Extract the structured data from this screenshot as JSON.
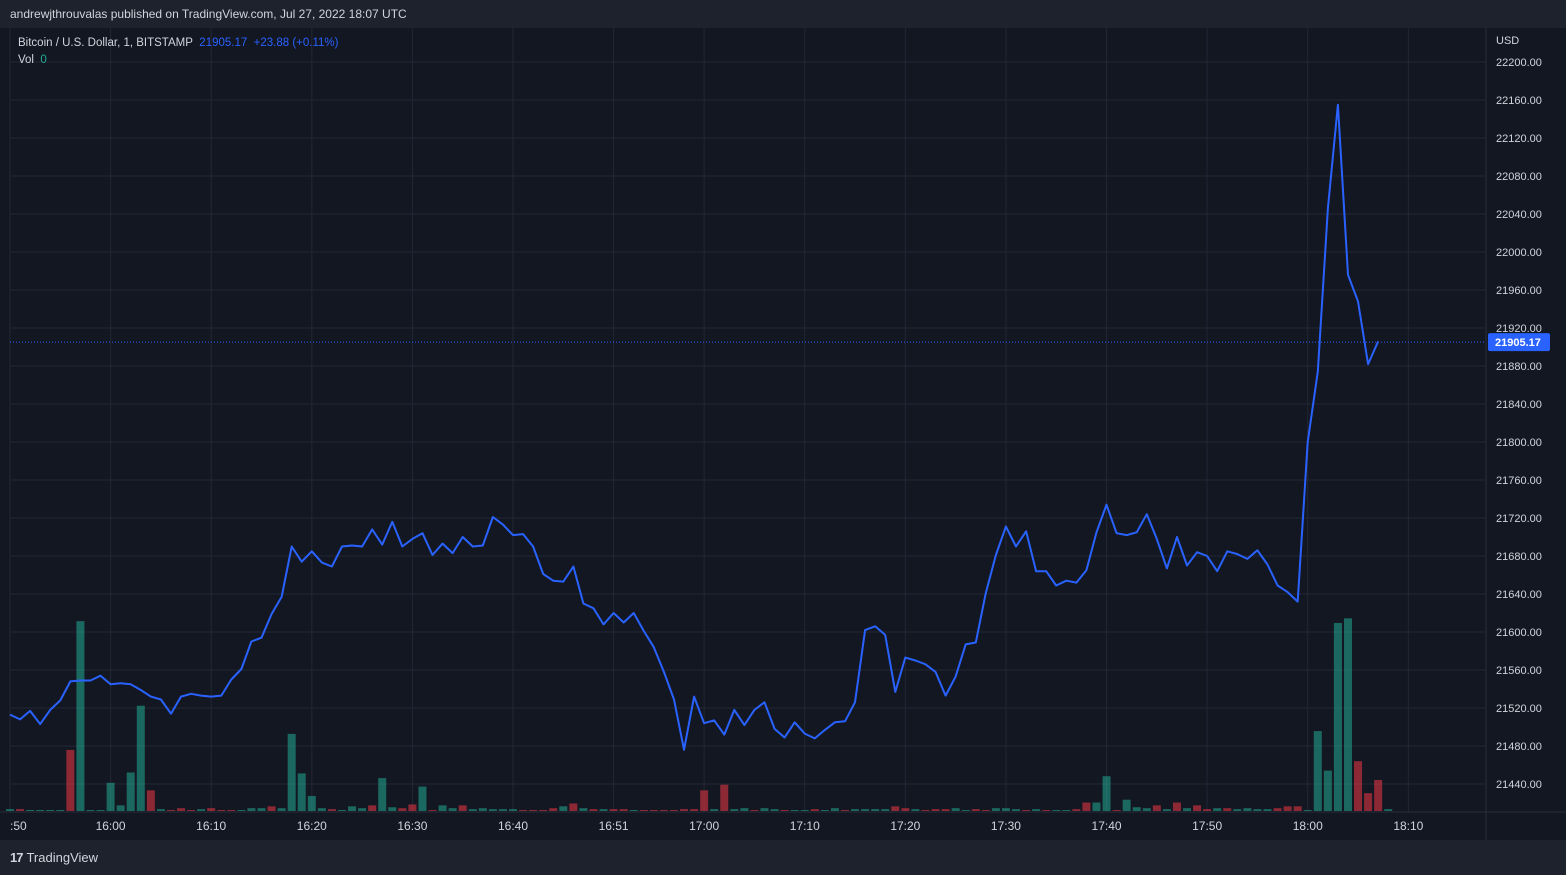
{
  "header": {
    "publisher_text": "andrewjthrouvalas published on TradingView.com, Jul 27, 2022 18:07 UTC"
  },
  "legend": {
    "symbol": "Bitcoin / U.S. Dollar, 1, BITSTAMP",
    "last": "21905.17",
    "change": "+23.88 (+0.11%)",
    "vol_label": "Vol",
    "vol_value": "0"
  },
  "footer": {
    "brand": "TradingView",
    "logo_glyph": "17"
  },
  "colors": {
    "background": "#131722",
    "line": "#2962ff",
    "up": "#22ab94",
    "down": "#f23645",
    "grid": "#232735",
    "axis_text": "#d1d4dc"
  },
  "chart_data": {
    "type": "line",
    "title": "Bitcoin / U.S. Dollar, 1, BITSTAMP",
    "currency_label": "USD",
    "last_price_label": "21905.17",
    "last_price": 21905.17,
    "ylim": [
      21400,
      22220
    ],
    "y_ticks": [
      21440,
      21480,
      21520,
      21560,
      21600,
      21640,
      21680,
      21720,
      21760,
      21800,
      21840,
      21880,
      21920,
      21960,
      22000,
      22040,
      22080,
      22120,
      22160,
      22200
    ],
    "y_tick_labels": [
      "21440.00",
      "21480.00",
      "21520.00",
      "21560.00",
      "21600.00",
      "21640.00",
      "21680.00",
      "21720.00",
      "21760.00",
      "21800.00",
      "21840.00",
      "21880.00",
      "21920.00",
      "21960.00",
      "22000.00",
      "22040.00",
      "22080.00",
      "22120.00",
      "22160.00",
      "22200.00"
    ],
    "x_tick_labels": [
      {
        "label": ":50",
        "index": 0
      },
      {
        "label": "16:00",
        "index": 10
      },
      {
        "label": "16:10",
        "index": 20
      },
      {
        "label": "16:20",
        "index": 30
      },
      {
        "label": "16:30",
        "index": 40
      },
      {
        "label": "16:40",
        "index": 50
      },
      {
        "label": "16:51",
        "index": 60
      },
      {
        "label": "17:00",
        "index": 69
      },
      {
        "label": "17:10",
        "index": 79
      },
      {
        "label": "17:20",
        "index": 89
      },
      {
        "label": "17:30",
        "index": 99
      },
      {
        "label": "17:40",
        "index": 109
      },
      {
        "label": "17:50",
        "index": 119
      },
      {
        "label": "18:00",
        "index": 129
      },
      {
        "label": "18:10",
        "index": 139
      }
    ],
    "series": [
      {
        "values": [
          21513,
          21508,
          21517,
          21503,
          21518,
          21528,
          21548,
          21549,
          21549,
          21554,
          21545,
          21546,
          21545,
          21539,
          21532,
          21529,
          21514,
          21532,
          21535,
          21533,
          21532,
          21533,
          21550,
          21561,
          21590,
          21594,
          21619,
          21637,
          21690,
          21674,
          21685,
          21673,
          21669,
          21690,
          21691,
          21690,
          21708,
          21692,
          21716,
          21690,
          21698,
          21704,
          21681,
          21693,
          21683,
          21700,
          21690,
          21691,
          21721,
          21713,
          21702,
          21703,
          21690,
          21661,
          21654,
          21653,
          21669,
          21630,
          21625,
          21608,
          21620,
          21610,
          21620,
          21601,
          21584,
          21558,
          21529,
          21476,
          21532,
          21504,
          21507,
          21492,
          21518,
          21502,
          21518,
          21526,
          21498,
          21489,
          21505,
          21493,
          21488,
          21497,
          21505,
          21506,
          21526,
          21602,
          21606,
          21597,
          21537,
          21573,
          21570,
          21566,
          21558,
          21533,
          21553,
          21587,
          21589,
          21641,
          21681,
          21711,
          21690,
          21706,
          21664,
          21664,
          21649,
          21654,
          21652,
          21665,
          21705,
          21734,
          21704,
          21702,
          21705,
          21724,
          21698,
          21667,
          21700,
          21670,
          21684,
          21680,
          21664,
          21685,
          21682,
          21677,
          21686,
          21671,
          21649,
          21642,
          21632,
          21800,
          21874,
          22046,
          22155,
          21976,
          21948,
          21882,
          21906
        ]
      }
    ],
    "volume": [
      {
        "v": 2,
        "up": true
      },
      {
        "v": 2,
        "up": false
      },
      {
        "v": 1,
        "up": true
      },
      {
        "v": 1,
        "up": true
      },
      {
        "v": 1,
        "up": true
      },
      {
        "v": 1,
        "up": true
      },
      {
        "v": 65,
        "up": false
      },
      {
        "v": 202,
        "up": true
      },
      {
        "v": 1,
        "up": true
      },
      {
        "v": 1,
        "up": true
      },
      {
        "v": 30,
        "up": true
      },
      {
        "v": 6,
        "up": true
      },
      {
        "v": 41,
        "up": true
      },
      {
        "v": 112,
        "up": true
      },
      {
        "v": 22,
        "up": false
      },
      {
        "v": 2,
        "up": true
      },
      {
        "v": 1,
        "up": false
      },
      {
        "v": 3,
        "up": false
      },
      {
        "v": 1,
        "up": false
      },
      {
        "v": 2,
        "up": true
      },
      {
        "v": 3,
        "up": false
      },
      {
        "v": 1,
        "up": false
      },
      {
        "v": 1,
        "up": false
      },
      {
        "v": 1,
        "up": true
      },
      {
        "v": 3,
        "up": true
      },
      {
        "v": 3,
        "up": true
      },
      {
        "v": 5,
        "up": false
      },
      {
        "v": 3,
        "up": true
      },
      {
        "v": 82,
        "up": true
      },
      {
        "v": 40,
        "up": true
      },
      {
        "v": 16,
        "up": true
      },
      {
        "v": 3,
        "up": true
      },
      {
        "v": 2,
        "up": false
      },
      {
        "v": 1,
        "up": true
      },
      {
        "v": 5,
        "up": true
      },
      {
        "v": 3,
        "up": true
      },
      {
        "v": 6,
        "up": false
      },
      {
        "v": 35,
        "up": true
      },
      {
        "v": 4,
        "up": true
      },
      {
        "v": 3,
        "up": false
      },
      {
        "v": 7,
        "up": false
      },
      {
        "v": 26,
        "up": true
      },
      {
        "v": 1,
        "up": false
      },
      {
        "v": 6,
        "up": true
      },
      {
        "v": 3,
        "up": true
      },
      {
        "v": 6,
        "up": false
      },
      {
        "v": 2,
        "up": true
      },
      {
        "v": 3,
        "up": true
      },
      {
        "v": 2,
        "up": true
      },
      {
        "v": 2,
        "up": true
      },
      {
        "v": 2,
        "up": true
      },
      {
        "v": 1,
        "up": false
      },
      {
        "v": 1,
        "up": false
      },
      {
        "v": 1,
        "up": false
      },
      {
        "v": 3,
        "up": false
      },
      {
        "v": 5,
        "up": true
      },
      {
        "v": 8,
        "up": false
      },
      {
        "v": 3,
        "up": true
      },
      {
        "v": 2,
        "up": false
      },
      {
        "v": 2,
        "up": true
      },
      {
        "v": 2,
        "up": false
      },
      {
        "v": 2,
        "up": false
      },
      {
        "v": 1,
        "up": true
      },
      {
        "v": 1,
        "up": false
      },
      {
        "v": 1,
        "up": false
      },
      {
        "v": 1,
        "up": false
      },
      {
        "v": 1,
        "up": false
      },
      {
        "v": 2,
        "up": false
      },
      {
        "v": 2,
        "up": false
      },
      {
        "v": 22,
        "up": false
      },
      {
        "v": 2,
        "up": true
      },
      {
        "v": 28,
        "up": false
      },
      {
        "v": 2,
        "up": true
      },
      {
        "v": 3,
        "up": true
      },
      {
        "v": 1,
        "up": false
      },
      {
        "v": 3,
        "up": true
      },
      {
        "v": 2,
        "up": true
      },
      {
        "v": 1,
        "up": false
      },
      {
        "v": 1,
        "up": true
      },
      {
        "v": 1,
        "up": true
      },
      {
        "v": 2,
        "up": false
      },
      {
        "v": 1,
        "up": true
      },
      {
        "v": 3,
        "up": true
      },
      {
        "v": 1,
        "up": false
      },
      {
        "v": 2,
        "up": true
      },
      {
        "v": 2,
        "up": true
      },
      {
        "v": 2,
        "up": true
      },
      {
        "v": 2,
        "up": true
      },
      {
        "v": 5,
        "up": false
      },
      {
        "v": 3,
        "up": false
      },
      {
        "v": 2,
        "up": true
      },
      {
        "v": 1,
        "up": false
      },
      {
        "v": 2,
        "up": false
      },
      {
        "v": 2,
        "up": false
      },
      {
        "v": 3,
        "up": true
      },
      {
        "v": 1,
        "up": true
      },
      {
        "v": 2,
        "up": false
      },
      {
        "v": 1,
        "up": false
      },
      {
        "v": 3,
        "up": true
      },
      {
        "v": 3,
        "up": true
      },
      {
        "v": 2,
        "up": true
      },
      {
        "v": 1,
        "up": false
      },
      {
        "v": 2,
        "up": true
      },
      {
        "v": 1,
        "up": false
      },
      {
        "v": 1,
        "up": true
      },
      {
        "v": 1,
        "up": true
      },
      {
        "v": 2,
        "up": false
      },
      {
        "v": 9,
        "up": false
      },
      {
        "v": 9,
        "up": true
      },
      {
        "v": 37,
        "up": true
      },
      {
        "v": 1,
        "up": false
      },
      {
        "v": 12,
        "up": true
      },
      {
        "v": 4,
        "up": true
      },
      {
        "v": 3,
        "up": true
      },
      {
        "v": 6,
        "up": false
      },
      {
        "v": 2,
        "up": true
      },
      {
        "v": 9,
        "up": false
      },
      {
        "v": 3,
        "up": true
      },
      {
        "v": 6,
        "up": false
      },
      {
        "v": 2,
        "up": false
      },
      {
        "v": 3,
        "up": true
      },
      {
        "v": 3,
        "up": false
      },
      {
        "v": 2,
        "up": true
      },
      {
        "v": 3,
        "up": true
      },
      {
        "v": 2,
        "up": true
      },
      {
        "v": 2,
        "up": true
      },
      {
        "v": 3,
        "up": false
      },
      {
        "v": 5,
        "up": false
      },
      {
        "v": 5,
        "up": false
      },
      {
        "v": 1,
        "up": true
      },
      {
        "v": 85,
        "up": true
      },
      {
        "v": 43,
        "up": true
      },
      {
        "v": 200,
        "up": true
      },
      {
        "v": 205,
        "up": true
      },
      {
        "v": 53,
        "up": false
      },
      {
        "v": 19,
        "up": false
      },
      {
        "v": 33,
        "up": false
      },
      {
        "v": 2,
        "up": true
      }
    ]
  }
}
